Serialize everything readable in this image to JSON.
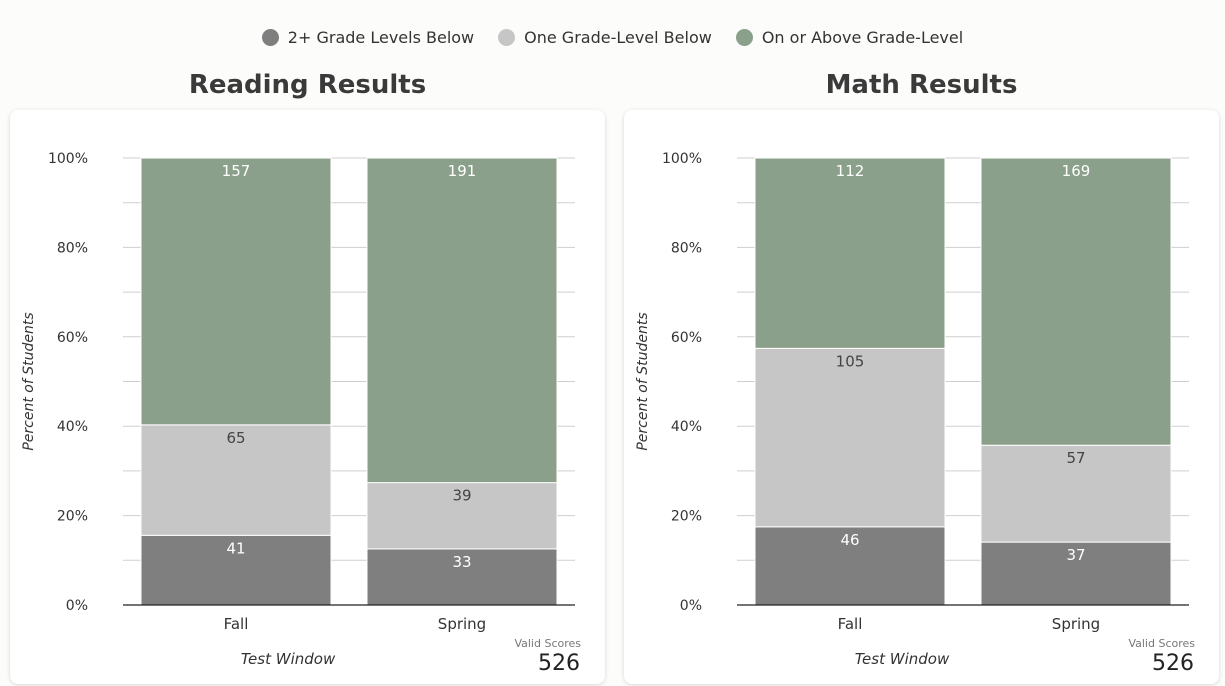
{
  "colors": {
    "below2": "#7f7f7f",
    "below1": "#c6c6c6",
    "onabove": "#8ba08a"
  },
  "legend": [
    {
      "label": "2+ Grade Levels Below",
      "color": "#7f7f7f"
    },
    {
      "label": "One Grade-Level Below",
      "color": "#c6c6c6"
    },
    {
      "label": "On or Above Grade-Level",
      "color": "#8ba08a"
    }
  ],
  "panels": [
    {
      "title": "Reading Results",
      "valid_scores_label": "Valid Scores",
      "valid_scores_value": "526"
    },
    {
      "title": "Math Results",
      "valid_scores_label": "Valid Scores",
      "valid_scores_value": "526"
    }
  ],
  "chart_data": [
    {
      "type": "bar",
      "stacked": "percent",
      "title": "Reading Results",
      "categories": [
        "Fall",
        "Spring"
      ],
      "series": [
        {
          "name": "2+ Grade Levels Below",
          "values": [
            41,
            33
          ]
        },
        {
          "name": "One Grade-Level Below",
          "values": [
            65,
            39
          ]
        },
        {
          "name": "On or Above Grade-Level",
          "values": [
            157,
            191
          ]
        }
      ],
      "xlabel": "Test Window",
      "ylabel": "Percent of Students",
      "ylim": [
        0,
        100
      ],
      "yticks": [
        "0%",
        "20%",
        "40%",
        "60%",
        "80%",
        "100%"
      ],
      "grid": true,
      "legend": "top-center"
    },
    {
      "type": "bar",
      "stacked": "percent",
      "title": "Math Results",
      "categories": [
        "Fall",
        "Spring"
      ],
      "series": [
        {
          "name": "2+ Grade Levels Below",
          "values": [
            46,
            37
          ]
        },
        {
          "name": "One Grade-Level Below",
          "values": [
            105,
            57
          ]
        },
        {
          "name": "On or Above Grade-Level",
          "values": [
            112,
            169
          ]
        }
      ],
      "xlabel": "Test Window",
      "ylabel": "Percent of Students",
      "ylim": [
        0,
        100
      ],
      "yticks": [
        "0%",
        "20%",
        "40%",
        "60%",
        "80%",
        "100%"
      ],
      "grid": true,
      "legend": "top-center"
    }
  ]
}
